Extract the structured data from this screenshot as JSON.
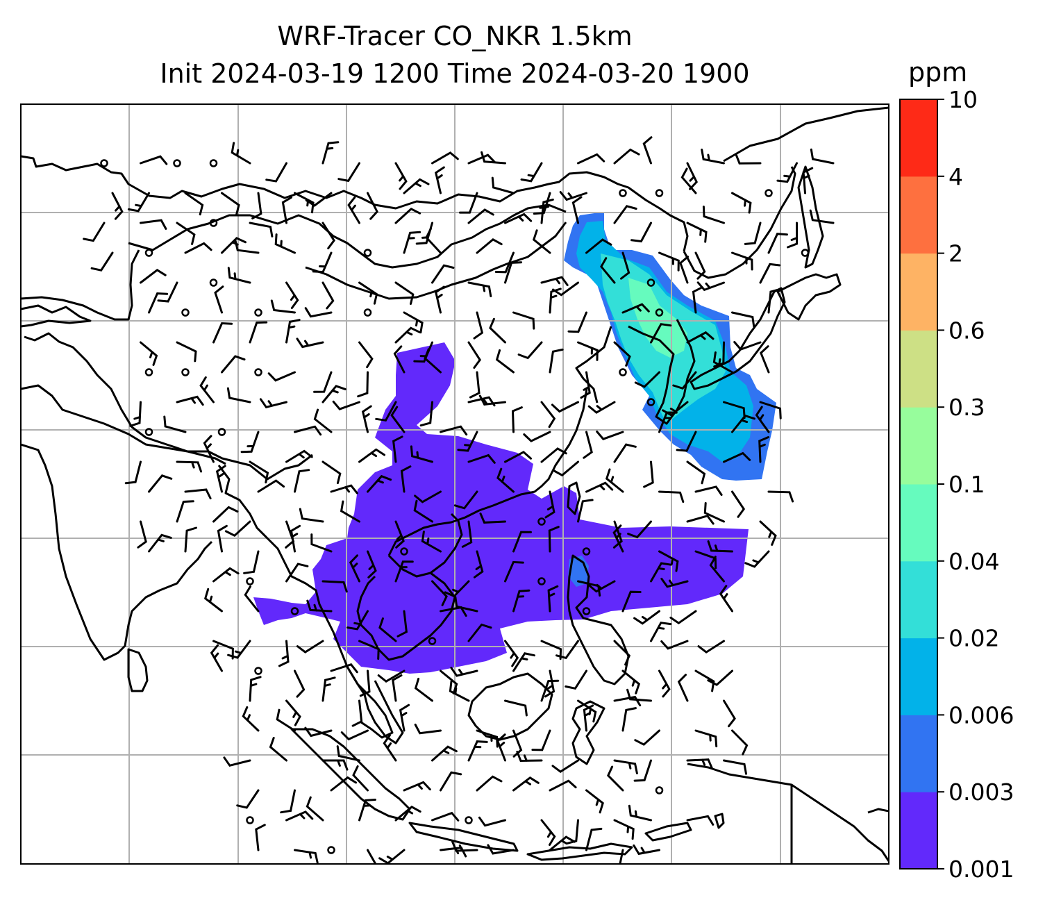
{
  "title": {
    "line1": "WRF-Tracer CO_NKR 1.5km",
    "line2": "Init 2024-03-19 1200 Time 2024-03-20 1900"
  },
  "colorbar": {
    "unit": "ppm",
    "levels": [
      "0.001",
      "0.003",
      "0.006",
      "0.02",
      "0.04",
      "0.1",
      "0.3",
      "0.6",
      "2",
      "4",
      "10"
    ],
    "colors": [
      "#6229fb",
      "#3174f2",
      "#02b2e9",
      "#33dfd8",
      "#66fbbe",
      "#97fd9c",
      "#cde085",
      "#feb364",
      "#fe703f",
      "#fe2a17"
    ]
  },
  "map": {
    "background": "#ffffff",
    "grid_color": "#b0b0b0",
    "coastline_color": "#000000"
  }
}
